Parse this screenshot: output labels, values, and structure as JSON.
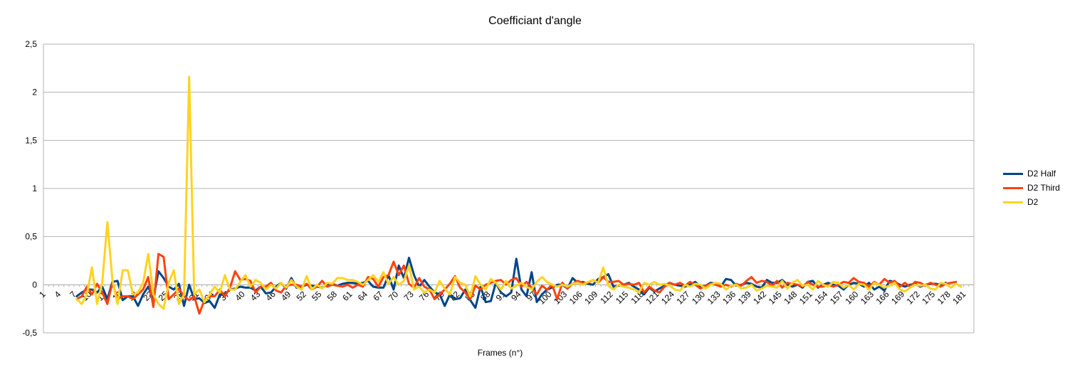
{
  "chart_data": {
    "type": "line",
    "title": "Coefficiant d'angle",
    "xlabel": "Frames (n°)",
    "ylabel": "",
    "ylim": [
      -0.5,
      2.5
    ],
    "yticks": [
      "-0,5",
      "0",
      "0,5",
      "1",
      "1,5",
      "2",
      "2,5"
    ],
    "grid": "horizontal",
    "legend": "right",
    "x_start": 1,
    "x_end": 182,
    "x_tick_step": 3,
    "series": [
      {
        "name": "D2 Half",
        "color": "#004586",
        "values": [
          null,
          null,
          null,
          null,
          null,
          null,
          -0.12,
          -0.08,
          -0.05,
          -0.05,
          -0.08,
          -0.02,
          -0.15,
          0.03,
          0.04,
          -0.16,
          -0.12,
          -0.12,
          -0.22,
          -0.1,
          -0.02,
          -0.15,
          0.14,
          0.07,
          -0.02,
          -0.05,
          0.01,
          -0.22,
          0.0,
          -0.15,
          -0.14,
          -0.19,
          -0.17,
          -0.24,
          -0.1,
          -0.1,
          -0.05,
          -0.04,
          -0.02,
          -0.03,
          -0.03,
          -0.06,
          -0.02,
          -0.09,
          -0.08,
          -0.02,
          0.02,
          -0.04,
          0.07,
          -0.03,
          -0.02,
          0.0,
          -0.01,
          -0.02,
          -0.03,
          0.0,
          0.01,
          -0.01,
          0.01,
          0.02,
          0.02,
          0.01,
          0.02,
          0.04,
          -0.02,
          -0.03,
          -0.03,
          0.1,
          -0.05,
          0.2,
          0.07,
          0.28,
          0.1,
          -0.02,
          0.05,
          -0.02,
          -0.08,
          -0.1,
          -0.22,
          -0.1,
          -0.15,
          -0.14,
          -0.05,
          -0.16,
          -0.24,
          -0.02,
          -0.18,
          -0.17,
          0.02,
          -0.08,
          -0.12,
          -0.08,
          0.27,
          -0.05,
          -0.12,
          0.13,
          -0.18,
          -0.1,
          -0.05,
          -0.03,
          0.0,
          0.0,
          -0.04,
          0.07,
          0.02,
          0.03,
          0.01,
          0.0,
          0.06,
          0.08,
          0.11,
          -0.02,
          -0.01,
          0.0,
          0.02,
          -0.02,
          -0.05,
          -0.1,
          -0.03,
          -0.07,
          -0.04,
          -0.01,
          0.02,
          0.0,
          -0.01,
          -0.02,
          0.0,
          0.03,
          -0.02,
          -0.01,
          0.02,
          0.01,
          -0.02,
          0.06,
          0.05,
          -0.01,
          0.0,
          0.02,
          0.01,
          -0.02,
          -0.03,
          0.05,
          0.02,
          0.02,
          0.05,
          0.0,
          -0.02,
          0.0,
          -0.03,
          0.03,
          0.04,
          -0.03,
          0.0,
          0.02,
          0.0,
          -0.01,
          -0.05,
          0.0,
          0.02,
          0.01,
          -0.02,
          0.02,
          -0.05,
          -0.02,
          -0.06,
          0.04,
          0.03,
          0.0,
          -0.02,
          0.0,
          0.01,
          -0.02,
          0.0,
          0.01,
          0.01,
          0.0,
          0.02
        ]
      },
      {
        "name": "D2 Third",
        "color": "#ff420e",
        "values": [
          null,
          null,
          null,
          null,
          null,
          null,
          -0.15,
          -0.12,
          -0.02,
          -0.1,
          0.01,
          -0.08,
          -0.2,
          0.02,
          -0.15,
          -0.12,
          -0.12,
          -0.15,
          -0.1,
          -0.05,
          0.08,
          -0.23,
          0.32,
          0.29,
          -0.15,
          -0.1,
          -0.04,
          -0.12,
          -0.16,
          -0.12,
          -0.3,
          -0.16,
          -0.12,
          -0.12,
          -0.05,
          -0.12,
          -0.03,
          0.14,
          0.05,
          0.06,
          0.04,
          -0.08,
          -0.02,
          -0.02,
          0.02,
          -0.06,
          -0.08,
          -0.01,
          0.0,
          0.0,
          -0.02,
          0.01,
          -0.05,
          -0.02,
          0.04,
          -0.02,
          0.0,
          -0.01,
          -0.02,
          0.0,
          -0.03,
          0.0,
          -0.02,
          0.08,
          0.06,
          -0.02,
          0.08,
          0.1,
          0.24,
          0.1,
          0.2,
          0.01,
          -0.03,
          0.07,
          -0.02,
          -0.05,
          -0.15,
          -0.1,
          -0.05,
          0.01,
          0.09,
          -0.03,
          -0.08,
          -0.15,
          -0.01,
          -0.05,
          0.0,
          0.02,
          0.04,
          0.05,
          0.0,
          0.05,
          0.07,
          -0.02,
          0.03,
          -0.03,
          -0.1,
          -0.01,
          -0.05,
          0.0,
          -0.15,
          0.02,
          -0.04,
          0.01,
          0.04,
          0.02,
          0.02,
          0.05,
          0.02,
          0.08,
          0.03,
          0.03,
          0.04,
          0.0,
          0.01,
          0.0,
          0.02,
          -0.08,
          -0.02,
          -0.06,
          -0.08,
          -0.02,
          0.02,
          0.0,
          0.02,
          -0.01,
          0.03,
          0.0,
          -0.04,
          -0.01,
          0.01,
          0.0,
          -0.02,
          0.0,
          -0.02,
          0.01,
          -0.01,
          0.04,
          0.08,
          0.02,
          0.04,
          0.03,
          -0.01,
          0.04,
          -0.03,
          0.02,
          0.01,
          0.0,
          -0.02,
          0.03,
          0.0,
          -0.02,
          -0.02,
          0.0,
          -0.02,
          0.0,
          0.03,
          0.02,
          0.07,
          0.03,
          0.02,
          -0.02,
          0.03,
          0.0,
          0.06,
          0.02,
          0.04,
          -0.02,
          0.02,
          -0.02,
          0.03,
          0.02,
          -0.01,
          0.02,
          0.0,
          -0.02,
          0.01,
          0.02,
          0.03
        ]
      },
      {
        "name": "D2",
        "color": "#ffd320",
        "values": [
          null,
          null,
          null,
          null,
          null,
          null,
          -0.15,
          -0.2,
          -0.1,
          0.18,
          -0.2,
          0.02,
          0.65,
          0.05,
          -0.2,
          0.15,
          0.15,
          -0.1,
          -0.08,
          0.02,
          0.32,
          -0.1,
          -0.2,
          -0.25,
          0.02,
          0.15,
          -0.2,
          -0.1,
          2.16,
          -0.1,
          -0.05,
          -0.18,
          -0.1,
          -0.02,
          -0.08,
          0.1,
          -0.05,
          -0.05,
          0.03,
          0.1,
          -0.02,
          0.05,
          0.02,
          -0.05,
          0.0,
          -0.04,
          0.02,
          -0.03,
          0.05,
          -0.02,
          -0.05,
          0.09,
          -0.05,
          0.0,
          -0.04,
          0.02,
          0.01,
          0.07,
          0.07,
          0.05,
          0.05,
          0.03,
          0.0,
          0.05,
          0.1,
          0.03,
          0.13,
          0.01,
          0.08,
          0.0,
          0.04,
          0.2,
          -0.05,
          -0.02,
          -0.08,
          -0.05,
          -0.08,
          0.04,
          -0.04,
          -0.1,
          0.08,
          0.02,
          0.0,
          -0.12,
          0.09,
          0.0,
          -0.05,
          0.06,
          0.02,
          -0.05,
          0.04,
          -0.04,
          -0.01,
          0.02,
          -0.02,
          -0.05,
          0.03,
          0.08,
          0.03,
          0.0,
          -0.02,
          0.0,
          -0.02,
          0.01,
          0.02,
          0.0,
          0.03,
          0.05,
          0.02,
          0.18,
          -0.01,
          -0.05,
          0.0,
          -0.02,
          -0.03,
          -0.05,
          -0.08,
          0.02,
          0.0,
          0.03,
          0.0,
          0.01,
          -0.01,
          -0.05,
          -0.06,
          0.0,
          -0.02,
          0.01,
          0.0,
          -0.04,
          0.0,
          0.02,
          0.01,
          -0.05,
          -0.01,
          0.0,
          -0.04,
          -0.03,
          0.0,
          -0.06,
          -0.04,
          -0.01,
          -0.02,
          -0.03,
          0.04,
          -0.04,
          0.02,
          0.05,
          -0.01,
          0.0,
          -0.05,
          0.04,
          0.0,
          -0.02,
          0.03,
          0.02,
          -0.03,
          0.0,
          -0.05,
          0.01,
          0.0,
          -0.05,
          0.02,
          0.0,
          -0.03,
          -0.01,
          0.02,
          -0.05,
          -0.07,
          -0.03,
          0.0,
          -0.01,
          0.0,
          -0.04,
          -0.05,
          0.02,
          0.01,
          -0.03,
          0.01,
          -0.02
        ]
      }
    ]
  }
}
